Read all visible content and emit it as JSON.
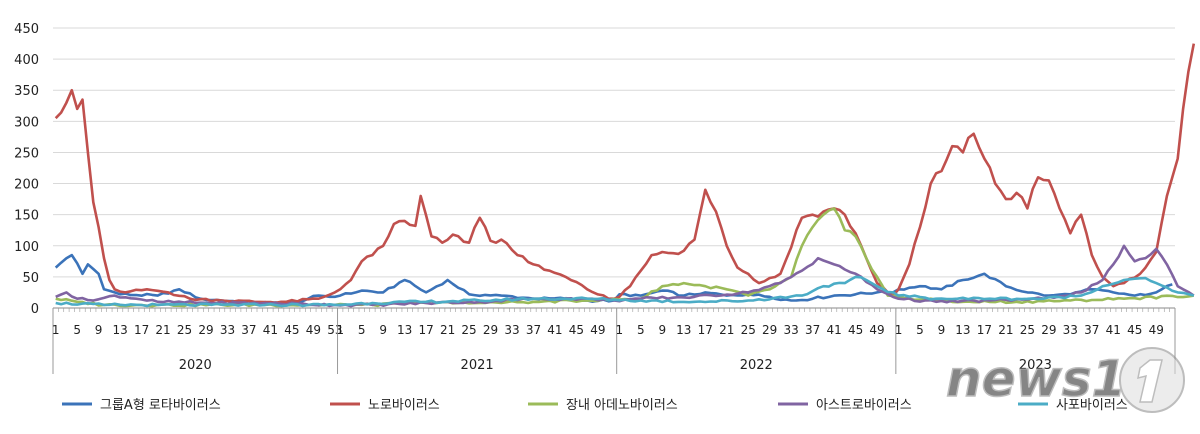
{
  "chart_data": {
    "type": "line",
    "title": "",
    "xlabel": "",
    "ylabel": "",
    "ylim": [
      0,
      450
    ],
    "yticks": [
      "0",
      "50",
      "100",
      "150",
      "200",
      "250",
      "300",
      "350",
      "400",
      "450"
    ],
    "grid": true,
    "legend_position": "bottom",
    "years": [
      {
        "label": "2020",
        "weeks": 53
      },
      {
        "label": "2021",
        "weeks": 52
      },
      {
        "label": "2022",
        "weeks": 52
      },
      {
        "label": "2023",
        "weeks": 52
      }
    ],
    "week_tick_step": 4,
    "series": [
      {
        "name": "그룹A형 로타바이러스",
        "color": "#3b73b9",
        "anchors": [
          [
            1,
            65
          ],
          [
            3,
            80
          ],
          [
            4,
            85
          ],
          [
            6,
            55
          ],
          [
            7,
            70
          ],
          [
            9,
            55
          ],
          [
            10,
            30
          ],
          [
            13,
            22
          ],
          [
            20,
            20
          ],
          [
            24,
            30
          ],
          [
            28,
            15
          ],
          [
            32,
            12
          ],
          [
            36,
            10
          ],
          [
            41,
            8
          ],
          [
            46,
            10
          ],
          [
            50,
            20
          ],
          [
            53,
            18
          ],
          [
            54,
            20
          ],
          [
            58,
            28
          ],
          [
            62,
            25
          ],
          [
            66,
            45
          ],
          [
            70,
            25
          ],
          [
            74,
            45
          ],
          [
            78,
            22
          ],
          [
            84,
            20
          ],
          [
            90,
            15
          ],
          [
            96,
            15
          ],
          [
            100,
            12
          ],
          [
            105,
            12
          ],
          [
            106,
            22
          ],
          [
            110,
            20
          ],
          [
            114,
            28
          ],
          [
            118,
            20
          ],
          [
            122,
            25
          ],
          [
            126,
            20
          ],
          [
            130,
            22
          ],
          [
            134,
            18
          ],
          [
            138,
            12
          ],
          [
            142,
            15
          ],
          [
            146,
            20
          ],
          [
            150,
            22
          ],
          [
            154,
            25
          ],
          [
            157,
            25
          ],
          [
            158,
            30
          ],
          [
            162,
            35
          ],
          [
            166,
            30
          ],
          [
            170,
            45
          ],
          [
            174,
            55
          ],
          [
            178,
            35
          ],
          [
            182,
            25
          ],
          [
            186,
            20
          ],
          [
            190,
            22
          ],
          [
            194,
            30
          ],
          [
            198,
            25
          ],
          [
            202,
            20
          ],
          [
            206,
            25
          ],
          [
            209,
            38
          ]
        ]
      },
      {
        "name": "노로바이러스",
        "color": "#c0504d",
        "anchors": [
          [
            1,
            305
          ],
          [
            3,
            330
          ],
          [
            4,
            350
          ],
          [
            5,
            320
          ],
          [
            6,
            335
          ],
          [
            7,
            250
          ],
          [
            8,
            170
          ],
          [
            9,
            130
          ],
          [
            10,
            80
          ],
          [
            11,
            45
          ],
          [
            12,
            30
          ],
          [
            14,
            25
          ],
          [
            18,
            30
          ],
          [
            22,
            25
          ],
          [
            26,
            15
          ],
          [
            32,
            12
          ],
          [
            38,
            10
          ],
          [
            44,
            10
          ],
          [
            50,
            15
          ],
          [
            53,
            25
          ],
          [
            54,
            30
          ],
          [
            56,
            45
          ],
          [
            58,
            75
          ],
          [
            60,
            85
          ],
          [
            62,
            100
          ],
          [
            64,
            135
          ],
          [
            66,
            140
          ],
          [
            68,
            132
          ],
          [
            69,
            180
          ],
          [
            71,
            115
          ],
          [
            73,
            105
          ],
          [
            75,
            118
          ],
          [
            78,
            105
          ],
          [
            80,
            145
          ],
          [
            82,
            108
          ],
          [
            84,
            110
          ],
          [
            87,
            85
          ],
          [
            90,
            70
          ],
          [
            93,
            60
          ],
          [
            96,
            50
          ],
          [
            100,
            30
          ],
          [
            104,
            15
          ],
          [
            105,
            15
          ],
          [
            106,
            18
          ],
          [
            108,
            35
          ],
          [
            110,
            60
          ],
          [
            112,
            85
          ],
          [
            114,
            90
          ],
          [
            116,
            88
          ],
          [
            118,
            92
          ],
          [
            120,
            110
          ],
          [
            122,
            190
          ],
          [
            124,
            155
          ],
          [
            126,
            100
          ],
          [
            128,
            65
          ],
          [
            130,
            55
          ],
          [
            132,
            40
          ],
          [
            136,
            55
          ],
          [
            140,
            145
          ],
          [
            142,
            150
          ],
          [
            144,
            155
          ],
          [
            146,
            160
          ],
          [
            148,
            150
          ],
          [
            150,
            120
          ],
          [
            152,
            80
          ],
          [
            154,
            40
          ],
          [
            156,
            25
          ],
          [
            157,
            20
          ],
          [
            158,
            30
          ],
          [
            160,
            70
          ],
          [
            162,
            130
          ],
          [
            164,
            200
          ],
          [
            166,
            220
          ],
          [
            168,
            260
          ],
          [
            170,
            250
          ],
          [
            172,
            280
          ],
          [
            174,
            240
          ],
          [
            176,
            200
          ],
          [
            178,
            175
          ],
          [
            180,
            185
          ],
          [
            182,
            160
          ],
          [
            184,
            210
          ],
          [
            186,
            205
          ],
          [
            188,
            160
          ],
          [
            190,
            120
          ],
          [
            192,
            150
          ],
          [
            194,
            85
          ],
          [
            196,
            50
          ],
          [
            198,
            35
          ],
          [
            200,
            40
          ],
          [
            203,
            55
          ],
          [
            206,
            90
          ],
          [
            208,
            180
          ],
          [
            209,
            210
          ],
          [
            210,
            240
          ],
          [
            211,
            320
          ],
          [
            212,
            380
          ],
          [
            213,
            425
          ]
        ]
      },
      {
        "name": "장내 아데노바이러스",
        "color": "#9bbb59",
        "anchors": [
          [
            1,
            15
          ],
          [
            5,
            10
          ],
          [
            10,
            5
          ],
          [
            20,
            5
          ],
          [
            40,
            5
          ],
          [
            53,
            5
          ],
          [
            60,
            5
          ],
          [
            70,
            8
          ],
          [
            80,
            8
          ],
          [
            90,
            10
          ],
          [
            100,
            12
          ],
          [
            110,
            15
          ],
          [
            114,
            35
          ],
          [
            118,
            40
          ],
          [
            122,
            35
          ],
          [
            126,
            30
          ],
          [
            130,
            20
          ],
          [
            134,
            30
          ],
          [
            138,
            50
          ],
          [
            140,
            100
          ],
          [
            142,
            130
          ],
          [
            144,
            150
          ],
          [
            146,
            160
          ],
          [
            148,
            125
          ],
          [
            150,
            115
          ],
          [
            152,
            80
          ],
          [
            154,
            50
          ],
          [
            156,
            20
          ],
          [
            160,
            15
          ],
          [
            170,
            10
          ],
          [
            180,
            10
          ],
          [
            190,
            12
          ],
          [
            200,
            15
          ],
          [
            213,
            20
          ]
        ]
      },
      {
        "name": "아스트로바이러스",
        "color": "#8064a2",
        "anchors": [
          [
            1,
            18
          ],
          [
            3,
            25
          ],
          [
            5,
            15
          ],
          [
            8,
            12
          ],
          [
            12,
            20
          ],
          [
            16,
            15
          ],
          [
            20,
            10
          ],
          [
            30,
            8
          ],
          [
            40,
            8
          ],
          [
            53,
            5
          ],
          [
            60,
            5
          ],
          [
            70,
            8
          ],
          [
            80,
            10
          ],
          [
            90,
            15
          ],
          [
            100,
            15
          ],
          [
            105,
            12
          ],
          [
            110,
            15
          ],
          [
            120,
            18
          ],
          [
            130,
            25
          ],
          [
            136,
            40
          ],
          [
            140,
            60
          ],
          [
            143,
            80
          ],
          [
            146,
            70
          ],
          [
            150,
            55
          ],
          [
            154,
            30
          ],
          [
            158,
            15
          ],
          [
            165,
            10
          ],
          [
            175,
            12
          ],
          [
            185,
            15
          ],
          [
            192,
            25
          ],
          [
            196,
            45
          ],
          [
            198,
            70
          ],
          [
            200,
            100
          ],
          [
            202,
            75
          ],
          [
            204,
            80
          ],
          [
            206,
            95
          ],
          [
            208,
            70
          ],
          [
            210,
            35
          ],
          [
            213,
            20
          ]
        ]
      },
      {
        "name": "사포바이러스",
        "color": "#4bacc6",
        "anchors": [
          [
            1,
            8
          ],
          [
            10,
            5
          ],
          [
            20,
            5
          ],
          [
            30,
            5
          ],
          [
            40,
            5
          ],
          [
            53,
            5
          ],
          [
            60,
            8
          ],
          [
            70,
            10
          ],
          [
            80,
            12
          ],
          [
            90,
            15
          ],
          [
            100,
            15
          ],
          [
            110,
            12
          ],
          [
            120,
            10
          ],
          [
            130,
            12
          ],
          [
            140,
            20
          ],
          [
            144,
            35
          ],
          [
            148,
            40
          ],
          [
            150,
            50
          ],
          [
            152,
            45
          ],
          [
            154,
            35
          ],
          [
            158,
            20
          ],
          [
            165,
            15
          ],
          [
            175,
            15
          ],
          [
            185,
            15
          ],
          [
            192,
            20
          ],
          [
            196,
            35
          ],
          [
            200,
            45
          ],
          [
            204,
            48
          ],
          [
            206,
            40
          ],
          [
            210,
            25
          ],
          [
            213,
            20
          ]
        ]
      }
    ]
  },
  "watermark": {
    "text": "news1"
  }
}
